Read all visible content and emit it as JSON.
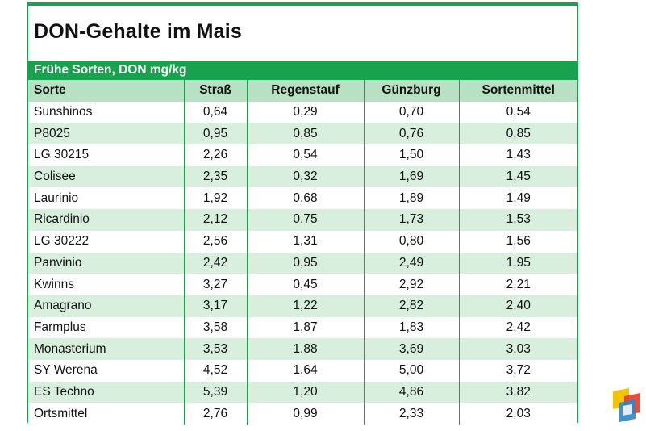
{
  "chart_data": {
    "type": "table",
    "title": "DON-Gehalte im Mais",
    "subtitle": "Frühe Sorten, DON mg/kg",
    "columns": [
      "Sorte",
      "Straß",
      "Regenstauf",
      "Günzburg",
      "Sortenmittel"
    ],
    "rows": [
      [
        "Sunshinos",
        "0,64",
        "0,29",
        "0,70",
        "0,54"
      ],
      [
        "P8025",
        "0,95",
        "0,85",
        "0,76",
        "0,85"
      ],
      [
        "LG 30215",
        "2,26",
        "0,54",
        "1,50",
        "1,43"
      ],
      [
        "Colisee",
        "2,35",
        "0,32",
        "1,69",
        "1,45"
      ],
      [
        "Laurinio",
        "1,92",
        "0,68",
        "1,89",
        "1,49"
      ],
      [
        "Ricardinio",
        "2,12",
        "0,75",
        "1,73",
        "1,53"
      ],
      [
        "LG 30222",
        "2,56",
        "1,31",
        "0,80",
        "1,56"
      ],
      [
        "Panvinio",
        "2,42",
        "0,95",
        "2,49",
        "1,95"
      ],
      [
        "Kwinns",
        "3,27",
        "0,45",
        "2,92",
        "2,21"
      ],
      [
        "Amagrano",
        "3,17",
        "1,22",
        "2,82",
        "2,40"
      ],
      [
        "Farmplus",
        "3,58",
        "1,87",
        "1,83",
        "2,42"
      ],
      [
        "Monasterium",
        "3,53",
        "1,88",
        "3,69",
        "3,03"
      ],
      [
        "SY Werena",
        "4,52",
        "1,64",
        "5,00",
        "3,72"
      ],
      [
        "ES Techno",
        "5,39",
        "1,20",
        "4,86",
        "3,82"
      ],
      [
        "Ortsmittel",
        "2,76",
        "0,99",
        "2,33",
        "2,03"
      ]
    ]
  },
  "colors": {
    "accent": "#19a24d",
    "header_fill": "#b7e1c2",
    "stripe_fill": "#d8efdd"
  },
  "icons": {
    "watermark": "publisher-logo-icon"
  }
}
